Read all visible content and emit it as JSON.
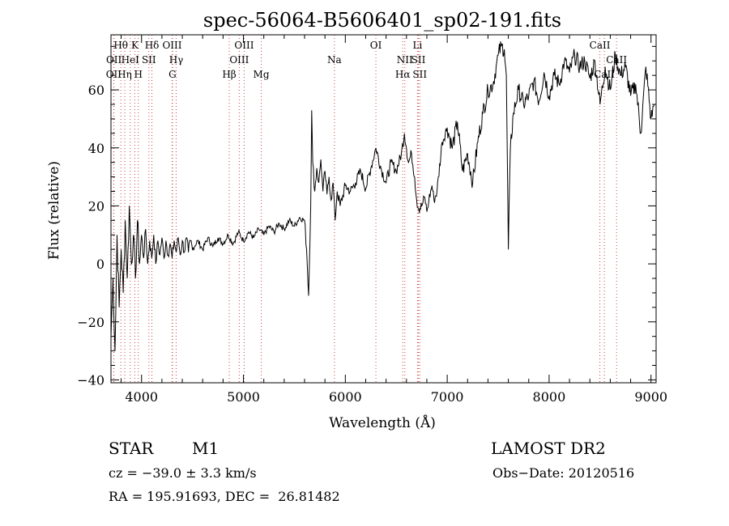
{
  "chart_data": {
    "type": "line",
    "title": "spec-56064-B5606401_sp02-191.fits",
    "xlabel": "Wavelength (Å)",
    "ylabel": "Flux (relative)",
    "xlim": [
      3700,
      9050
    ],
    "ylim": [
      -41,
      79
    ],
    "x_ticks": [
      4000,
      5000,
      6000,
      7000,
      8000,
      9000
    ],
    "y_ticks": [
      -40,
      -20,
      0,
      20,
      40,
      60
    ],
    "grid": false,
    "series": [
      {
        "points": [
          [
            3700,
            -25
          ],
          [
            3720,
            -5
          ],
          [
            3740,
            -30
          ],
          [
            3760,
            10
          ],
          [
            3780,
            -15
          ],
          [
            3800,
            5
          ],
          [
            3820,
            -10
          ],
          [
            3840,
            15
          ],
          [
            3860,
            -5
          ],
          [
            3880,
            20
          ],
          [
            3900,
            0
          ],
          [
            3920,
            10
          ],
          [
            3940,
            -5
          ],
          [
            3960,
            15
          ],
          [
            3980,
            0
          ],
          [
            4000,
            10
          ],
          [
            4020,
            2
          ],
          [
            4040,
            12
          ],
          [
            4060,
            0
          ],
          [
            4080,
            8
          ],
          [
            4100,
            2
          ],
          [
            4120,
            10
          ],
          [
            4140,
            0
          ],
          [
            4160,
            8
          ],
          [
            4180,
            3
          ],
          [
            4200,
            9
          ],
          [
            4220,
            2
          ],
          [
            4240,
            8
          ],
          [
            4260,
            3
          ],
          [
            4280,
            7
          ],
          [
            4300,
            2
          ],
          [
            4320,
            8
          ],
          [
            4340,
            4
          ],
          [
            4360,
            9
          ],
          [
            4380,
            3
          ],
          [
            4400,
            8
          ],
          [
            4420,
            4
          ],
          [
            4440,
            9
          ],
          [
            4460,
            4
          ],
          [
            4480,
            8
          ],
          [
            4500,
            5
          ],
          [
            4550,
            8
          ],
          [
            4600,
            5
          ],
          [
            4650,
            9
          ],
          [
            4700,
            6
          ],
          [
            4750,
            9
          ],
          [
            4800,
            7
          ],
          [
            4850,
            10
          ],
          [
            4900,
            7
          ],
          [
            4950,
            11
          ],
          [
            5000,
            8
          ],
          [
            5050,
            11
          ],
          [
            5100,
            9
          ],
          [
            5150,
            12
          ],
          [
            5200,
            10
          ],
          [
            5250,
            13
          ],
          [
            5300,
            11
          ],
          [
            5350,
            14
          ],
          [
            5400,
            12
          ],
          [
            5450,
            15
          ],
          [
            5500,
            13
          ],
          [
            5550,
            16
          ],
          [
            5600,
            15
          ],
          [
            5620,
            5
          ],
          [
            5640,
            -11
          ],
          [
            5660,
            20
          ],
          [
            5670,
            53
          ],
          [
            5680,
            35
          ],
          [
            5700,
            25
          ],
          [
            5720,
            33
          ],
          [
            5740,
            28
          ],
          [
            5760,
            36
          ],
          [
            5780,
            25
          ],
          [
            5800,
            32
          ],
          [
            5820,
            24
          ],
          [
            5840,
            30
          ],
          [
            5860,
            22
          ],
          [
            5880,
            28
          ],
          [
            5900,
            15
          ],
          [
            5920,
            25
          ],
          [
            5950,
            20
          ],
          [
            6000,
            27
          ],
          [
            6050,
            25
          ],
          [
            6100,
            28
          ],
          [
            6150,
            32
          ],
          [
            6200,
            26
          ],
          [
            6250,
            33
          ],
          [
            6300,
            40
          ],
          [
            6350,
            33
          ],
          [
            6400,
            28
          ],
          [
            6450,
            35
          ],
          [
            6500,
            32
          ],
          [
            6550,
            38
          ],
          [
            6580,
            45
          ],
          [
            6600,
            40
          ],
          [
            6620,
            35
          ],
          [
            6650,
            38
          ],
          [
            6680,
            30
          ],
          [
            6700,
            22
          ],
          [
            6720,
            19
          ],
          [
            6750,
            20
          ],
          [
            6780,
            23
          ],
          [
            6800,
            18
          ],
          [
            6820,
            22
          ],
          [
            6850,
            27
          ],
          [
            6870,
            22
          ],
          [
            6900,
            25
          ],
          [
            6950,
            42
          ],
          [
            7000,
            47
          ],
          [
            7050,
            40
          ],
          [
            7100,
            49
          ],
          [
            7150,
            32
          ],
          [
            7200,
            38
          ],
          [
            7250,
            28
          ],
          [
            7300,
            42
          ],
          [
            7350,
            52
          ],
          [
            7400,
            60
          ],
          [
            7450,
            62
          ],
          [
            7480,
            68
          ],
          [
            7500,
            72
          ],
          [
            7530,
            75
          ],
          [
            7560,
            74
          ],
          [
            7580,
            65
          ],
          [
            7600,
            5
          ],
          [
            7620,
            40
          ],
          [
            7650,
            52
          ],
          [
            7700,
            60
          ],
          [
            7750,
            55
          ],
          [
            7800,
            58
          ],
          [
            7850,
            63
          ],
          [
            7900,
            56
          ],
          [
            7950,
            66
          ],
          [
            8000,
            58
          ],
          [
            8050,
            65
          ],
          [
            8100,
            62
          ],
          [
            8150,
            70
          ],
          [
            8200,
            66
          ],
          [
            8250,
            72
          ],
          [
            8300,
            68
          ],
          [
            8350,
            70
          ],
          [
            8400,
            64
          ],
          [
            8450,
            70
          ],
          [
            8500,
            55
          ],
          [
            8550,
            68
          ],
          [
            8600,
            60
          ],
          [
            8650,
            72
          ],
          [
            8700,
            65
          ],
          [
            8750,
            68
          ],
          [
            8800,
            58
          ],
          [
            8850,
            62
          ],
          [
            8900,
            45
          ],
          [
            8950,
            68
          ],
          [
            9000,
            50
          ],
          [
            9030,
            55
          ]
        ]
      }
    ],
    "lines": [
      {
        "label": "OII",
        "x": 3727,
        "row": 3
      },
      {
        "label": "OII",
        "x": 3729,
        "row": 2
      },
      {
        "label": "Hθ",
        "x": 3797,
        "row": 1
      },
      {
        "label": "Hη",
        "x": 3835,
        "row": 3
      },
      {
        "label": "HeI",
        "x": 3889,
        "row": 2
      },
      {
        "label": "K",
        "x": 3934,
        "row": 1
      },
      {
        "label": "H",
        "x": 3968,
        "row": 3
      },
      {
        "label": "SII",
        "x": 4072,
        "row": 2
      },
      {
        "label": "Hδ",
        "x": 4102,
        "row": 1
      },
      {
        "label": "OIII",
        "x": 4300,
        "row": 1
      },
      {
        "label": "Hγ",
        "x": 4340,
        "row": 2
      },
      {
        "label": "G",
        "x": 4304,
        "row": 3
      },
      {
        "label": "Hβ",
        "x": 4861,
        "row": 3
      },
      {
        "label": "OIII",
        "x": 4959,
        "row": 2
      },
      {
        "label": "OIII",
        "x": 5007,
        "row": 1
      },
      {
        "label": "Mg",
        "x": 5175,
        "row": 3
      },
      {
        "label": "Na",
        "x": 5893,
        "row": 2
      },
      {
        "label": "OI",
        "x": 6300,
        "row": 1
      },
      {
        "label": "NII",
        "x": 6584,
        "row": 2
      },
      {
        "label": "Hα",
        "x": 6563,
        "row": 3
      },
      {
        "label": "Li",
        "x": 6708,
        "row": 1
      },
      {
        "label": "SII",
        "x": 6717,
        "row": 2
      },
      {
        "label": "SII",
        "x": 6731,
        "row": 3
      },
      {
        "label": "CaII",
        "x": 8498,
        "row": 1
      },
      {
        "label": "CaII",
        "x": 8542,
        "row": 3
      },
      {
        "label": "CaII",
        "x": 8662,
        "row": 2
      }
    ]
  },
  "info": {
    "object_type": "STAR",
    "subclass": "M1",
    "survey": "LAMOST DR2",
    "cz": "cz = −39.0 ± 3.3 km/s",
    "obs_date": "Obs−Date: 20120516",
    "coords": "RA = 195.91693, DEC =  26.81482"
  }
}
